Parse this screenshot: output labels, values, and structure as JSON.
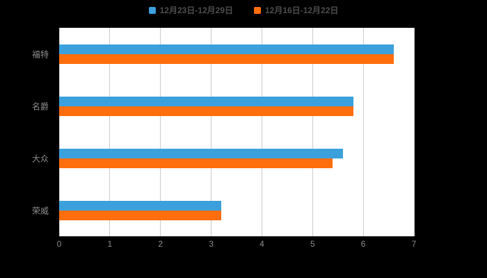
{
  "chart_data": {
    "type": "bar",
    "orientation": "horizontal",
    "title": "",
    "xlabel": "",
    "ylabel": "",
    "categories": [
      "福特",
      "名爵",
      "大众",
      "荣威"
    ],
    "series": [
      {
        "name": "12月23日-12月29日",
        "color": "#3BA0DC",
        "values": [
          6.6,
          5.8,
          5.6,
          3.2
        ]
      },
      {
        "name": "12月16日-12月22日",
        "color": "#FF6E0C",
        "values": [
          6.6,
          5.8,
          5.4,
          3.2
        ]
      }
    ],
    "xlim": [
      0,
      7
    ],
    "x_ticks": [
      0,
      1,
      2,
      3,
      4,
      5,
      6,
      7
    ],
    "grid": true,
    "legend_position": "top"
  },
  "colors": {
    "page_background": "#000000",
    "plot_background": "#ffffff",
    "grid_line": "#cccccc",
    "axis_text": "#8c8c8c",
    "legend_text": "#4d4d4d"
  }
}
